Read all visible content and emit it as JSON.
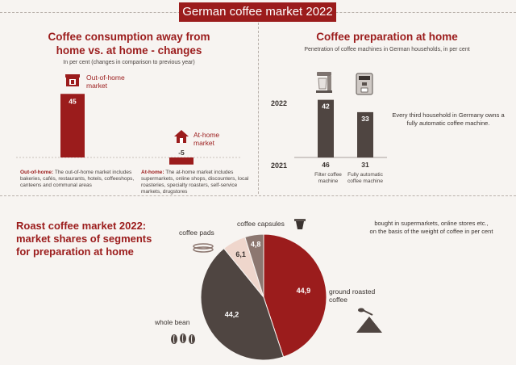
{
  "banner": "German coffee market 2022",
  "left": {
    "title_line1": "Coffee consumption away from",
    "title_line2": "home vs. at home - changes",
    "subtitle": "In per cent (changes in comparison to previous year)",
    "note_ooh_bold": "Out-of-home:",
    "note_ooh": " The out-of-home market includes bakeries, cafés, restaurants, hotels, coffeeshops, canteens and communal areas",
    "note_ah_bold": "At-home:",
    "note_ah": " The at-home market includes supermarkets, online shops, discounters, local roasteries, specialty roasters, self-service markets, drugstores"
  },
  "right": {
    "title": "Coffee preparation at home",
    "subtitle": "Penetration of coffee machines in German households, in per cent",
    "note": "Every third household in Germany owns a fully automatic coffee machine."
  },
  "bottom": {
    "title_line1": "Roast coffee market 2022:",
    "title_line2": "market shares of segments",
    "title_line3": "for preparation at home",
    "note_line1": "bought in supermarkets, online stores etc.,",
    "note_line2": "on the basis of the weight of coffee in per cent"
  },
  "chart_data": [
    {
      "type": "bar",
      "categories": [
        "Out-of-home market",
        "At-home market"
      ],
      "values": [
        45,
        -5
      ],
      "value_labels": [
        "45",
        "-5"
      ],
      "colors": [
        "#9b1c1c",
        "#9b1c1c"
      ]
    },
    {
      "type": "bar",
      "categories": [
        "Filter coffee machine",
        "Fully automatic coffee machine"
      ],
      "series": [
        {
          "name": "2022",
          "values": [
            42,
            33
          ]
        },
        {
          "name": "2021",
          "values": [
            46,
            31
          ]
        }
      ],
      "row_labels": [
        "2022",
        "2021"
      ],
      "color": "#4f4541"
    },
    {
      "type": "pie",
      "labels": [
        "ground roasted coffee",
        "whole bean",
        "coffee pads",
        "coffee capsules"
      ],
      "values": [
        44.9,
        44.2,
        6.1,
        4.8
      ],
      "value_labels": [
        "44,9",
        "44,2",
        "6,1",
        "4,8"
      ],
      "colors": [
        "#9b1c1c",
        "#4f4541",
        "#efd6cc",
        "#8c7770"
      ]
    }
  ]
}
